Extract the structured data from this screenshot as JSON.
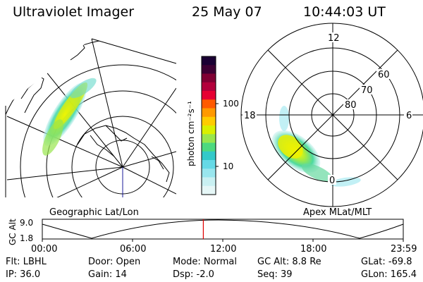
{
  "header": {
    "instrument": "Ultraviolet Imager",
    "date": "25 May 07",
    "time": "10:44:03 UT"
  },
  "geo_map": {
    "label": "Geographic Lat/Lon"
  },
  "apex_map": {
    "label": "Apex MLat/MLT",
    "mlt_labels": {
      "top": "12",
      "left": "18",
      "right": "6",
      "bottom": "0"
    },
    "lat_labels": [
      "60",
      "70",
      "80"
    ]
  },
  "colorbar": {
    "unit_label": "photon cm⁻²s⁻¹",
    "ticks": [
      "100",
      "10"
    ],
    "colors": [
      "#1a0033",
      "#3d0033",
      "#800033",
      "#b3003b",
      "#e60033",
      "#ff5a00",
      "#ff9900",
      "#ffcc00",
      "#d9f000",
      "#99e64d",
      "#4dd97f",
      "#33c9c9",
      "#66d9e6",
      "#99e6ee",
      "#c9f0f2",
      "#e6f7f7"
    ]
  },
  "altitude_plot": {
    "axis_title": "GC Alt",
    "y_ticks": [
      "9.0",
      "1.8"
    ],
    "x_ticks": [
      "00:00",
      "06:00",
      "12:00",
      "18:00",
      "23:59"
    ],
    "marker_color": "#e00000",
    "current_time_fraction": 0.446
  },
  "status": {
    "flt": "Flt: LBHL",
    "ip": "IP: 36.0",
    "door": "Door: Open",
    "gain": "Gain: 14",
    "mode": "Mode: Normal",
    "dsp": "Dsp:   -2.0",
    "gcalt": "GC Alt: 8.8 Re",
    "seq": "Seq: 39",
    "glat": "GLat: -69.8",
    "glon": "GLon: 165.4"
  }
}
